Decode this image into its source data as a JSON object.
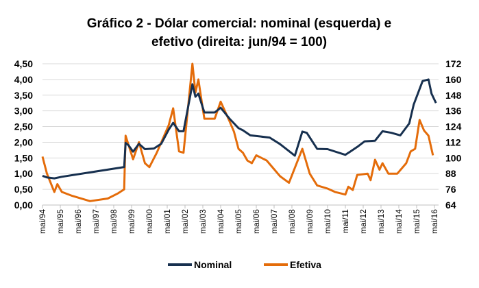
{
  "chart_data": {
    "type": "line",
    "title_lines": [
      "Gráfico 2 - Dólar comercial: nominal (esquerda) e",
      "efetivo (direita: jun/94 = 100)"
    ],
    "y_left": {
      "ticks": [
        "0,00",
        "0,50",
        "1,00",
        "1,50",
        "2,00",
        "2,50",
        "3,00",
        "3,50",
        "4,00",
        "4,50"
      ],
      "range": [
        0,
        4.5
      ]
    },
    "y_right": {
      "ticks": [
        "64",
        "76",
        "88",
        "100",
        "112",
        "124",
        "136",
        "148",
        "160",
        "172"
      ],
      "range": [
        64,
        172
      ]
    },
    "x_ticks": [
      "mai/94",
      "mai/95",
      "mai/96",
      "mai/97",
      "mai/98",
      "mai/99",
      "mai/00",
      "mai/01",
      "mai/02",
      "mai/03",
      "mai/04",
      "mai/05",
      "mai/06",
      "mai/07",
      "mai/08",
      "mai/09",
      "mai/10",
      "mai/11",
      "mai/12",
      "mai/13",
      "mai/14",
      "mai/15",
      "mai/16"
    ],
    "grid": true,
    "legend_position": "bottom",
    "series": [
      {
        "name": "Nominal",
        "axis": "left",
        "color": "#17304f",
        "points": [
          [
            "1994-05",
            0.93
          ],
          [
            "1994-08",
            0.88
          ],
          [
            "1995-01",
            0.85
          ],
          [
            "1995-06",
            0.9
          ],
          [
            "1998-12",
            1.21
          ],
          [
            "1999-01",
            1.98
          ],
          [
            "1999-03",
            1.9
          ],
          [
            "1999-06",
            1.7
          ],
          [
            "1999-10",
            1.95
          ],
          [
            "2000-02",
            1.78
          ],
          [
            "2000-08",
            1.8
          ],
          [
            "2001-01",
            1.95
          ],
          [
            "2001-06",
            2.4
          ],
          [
            "2001-09",
            2.62
          ],
          [
            "2002-01",
            2.35
          ],
          [
            "2002-04",
            2.35
          ],
          [
            "2002-10",
            3.85
          ],
          [
            "2002-12",
            3.45
          ],
          [
            "2003-02",
            3.55
          ],
          [
            "2003-06",
            2.95
          ],
          [
            "2004-01",
            2.95
          ],
          [
            "2004-05",
            3.1
          ],
          [
            "2004-11",
            2.75
          ],
          [
            "2005-05",
            2.45
          ],
          [
            "2005-08",
            2.38
          ],
          [
            "2006-01",
            2.22
          ],
          [
            "2007-02",
            2.15
          ],
          [
            "2007-09",
            1.94
          ],
          [
            "2008-07",
            1.57
          ],
          [
            "2008-12",
            2.34
          ],
          [
            "2009-03",
            2.3
          ],
          [
            "2009-10",
            1.79
          ],
          [
            "2010-05",
            1.78
          ],
          [
            "2011-05",
            1.6
          ],
          [
            "2012-01",
            1.85
          ],
          [
            "2012-06",
            2.03
          ],
          [
            "2013-01",
            2.05
          ],
          [
            "2013-06",
            2.35
          ],
          [
            "2013-12",
            2.3
          ],
          [
            "2014-06",
            2.22
          ],
          [
            "2014-12",
            2.6
          ],
          [
            "2015-03",
            3.2
          ],
          [
            "2015-09",
            3.95
          ],
          [
            "2016-01",
            4.0
          ],
          [
            "2016-03",
            3.55
          ],
          [
            "2016-06",
            3.25
          ]
        ]
      },
      {
        "name": "Efetiva",
        "axis": "right",
        "color": "#e46c0a",
        "points": [
          [
            "1994-05",
            101
          ],
          [
            "1994-08",
            88
          ],
          [
            "1995-01",
            74
          ],
          [
            "1995-03",
            80
          ],
          [
            "1995-06",
            74
          ],
          [
            "1996-01",
            71
          ],
          [
            "1997-01",
            67
          ],
          [
            "1998-01",
            69
          ],
          [
            "1998-08",
            73
          ],
          [
            "1998-12",
            76
          ],
          [
            "1999-01",
            117
          ],
          [
            "1999-06",
            99
          ],
          [
            "1999-10",
            112
          ],
          [
            "2000-02",
            96
          ],
          [
            "2000-05",
            93
          ],
          [
            "2000-10",
            104
          ],
          [
            "2001-06",
            125
          ],
          [
            "2001-09",
            138
          ],
          [
            "2002-01",
            105
          ],
          [
            "2002-04",
            104
          ],
          [
            "2002-10",
            172
          ],
          [
            "2002-12",
            150
          ],
          [
            "2003-02",
            160
          ],
          [
            "2003-04",
            145
          ],
          [
            "2003-06",
            130
          ],
          [
            "2004-01",
            130
          ],
          [
            "2004-05",
            143
          ],
          [
            "2004-11",
            128
          ],
          [
            "2005-02",
            120
          ],
          [
            "2005-05",
            107
          ],
          [
            "2005-08",
            104
          ],
          [
            "2005-11",
            98
          ],
          [
            "2006-02",
            96
          ],
          [
            "2006-05",
            102
          ],
          [
            "2006-12",
            98
          ],
          [
            "2007-06",
            90
          ],
          [
            "2007-09",
            86
          ],
          [
            "2008-03",
            81
          ],
          [
            "2008-12",
            107
          ],
          [
            "2009-05",
            88
          ],
          [
            "2009-10",
            79
          ],
          [
            "2010-05",
            76.6
          ],
          [
            "2010-10",
            74
          ],
          [
            "2011-05",
            72
          ],
          [
            "2011-07",
            78
          ],
          [
            "2011-10",
            75.5
          ],
          [
            "2012-01",
            87
          ],
          [
            "2012-08",
            88
          ],
          [
            "2012-10",
            83
          ],
          [
            "2013-01",
            98.6
          ],
          [
            "2013-04",
            91
          ],
          [
            "2013-06",
            96
          ],
          [
            "2013-10",
            88
          ],
          [
            "2014-04",
            88
          ],
          [
            "2014-10",
            96
          ],
          [
            "2015-01",
            105
          ],
          [
            "2015-04",
            107
          ],
          [
            "2015-07",
            129
          ],
          [
            "2015-10",
            121
          ],
          [
            "2016-01",
            117
          ],
          [
            "2016-04",
            102
          ]
        ]
      }
    ]
  }
}
